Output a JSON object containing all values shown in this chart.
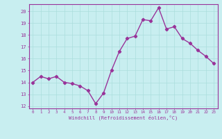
{
  "x": [
    0,
    1,
    2,
    3,
    4,
    5,
    6,
    7,
    8,
    9,
    10,
    11,
    12,
    13,
    14,
    15,
    16,
    17,
    18,
    19,
    20,
    21,
    22,
    23
  ],
  "y": [
    14.0,
    14.5,
    14.3,
    14.5,
    14.0,
    13.9,
    13.7,
    13.3,
    12.2,
    13.1,
    15.0,
    16.6,
    17.7,
    17.9,
    19.3,
    19.2,
    20.3,
    18.5,
    18.7,
    17.7,
    17.3,
    16.7,
    16.2,
    15.6
  ],
  "xlim": [
    -0.5,
    23.5
  ],
  "ylim": [
    11.8,
    20.6
  ],
  "yticks": [
    12,
    13,
    14,
    15,
    16,
    17,
    18,
    19,
    20
  ],
  "xticks": [
    0,
    1,
    2,
    3,
    4,
    5,
    6,
    7,
    8,
    9,
    10,
    11,
    12,
    13,
    14,
    15,
    16,
    17,
    18,
    19,
    20,
    21,
    22,
    23
  ],
  "xlabel": "Windchill (Refroidissement éolien,°C)",
  "line_color": "#993399",
  "marker": "D",
  "bg_color": "#c8eef0",
  "grid_color": "#aadddd",
  "tick_color": "#993399",
  "label_color": "#993399",
  "marker_size": 2.2,
  "line_width": 1.0
}
